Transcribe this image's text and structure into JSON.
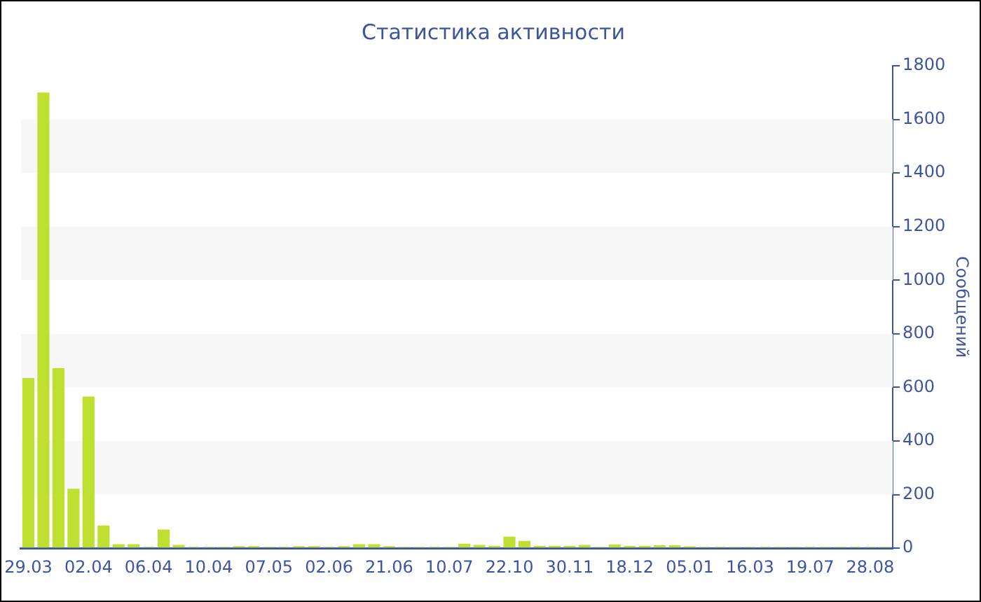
{
  "chart_data": {
    "type": "bar",
    "title": "Статистика активности",
    "ylabel": "Сообщений",
    "categories": [
      "29.03",
      null,
      null,
      null,
      "02.04",
      null,
      null,
      null,
      "06.04",
      null,
      null,
      null,
      "10.04",
      null,
      null,
      null,
      "07.05",
      null,
      null,
      null,
      "02.06",
      null,
      null,
      null,
      "21.06",
      null,
      null,
      null,
      "10.07",
      null,
      null,
      null,
      "22.10",
      null,
      null,
      null,
      "30.11",
      null,
      null,
      null,
      "18.12",
      null,
      null,
      null,
      "05.01",
      null,
      null,
      null,
      "16.03",
      null,
      null,
      null,
      "19.07",
      null,
      null,
      null,
      "28.08",
      null
    ],
    "values": [
      635,
      1700,
      672,
      222,
      566,
      85,
      15,
      15,
      5,
      70,
      12,
      5,
      5,
      5,
      8,
      8,
      5,
      5,
      8,
      8,
      5,
      8,
      15,
      15,
      8,
      5,
      5,
      5,
      5,
      17,
      12,
      9,
      43,
      27,
      9,
      9,
      9,
      12,
      5,
      14,
      9,
      9,
      11,
      11,
      7,
      5,
      5,
      5,
      5,
      5,
      5,
      5,
      5,
      5,
      5,
      5,
      5,
      5
    ],
    "color": "#bfe030",
    "ylim": [
      0,
      1800
    ],
    "yticks": [
      0,
      200,
      400,
      600,
      800,
      1000,
      1200,
      1400,
      1600,
      1800
    ],
    "bands": [
      {
        "axis": "y",
        "from": 200,
        "to": 400,
        "color": "#f7f7f7"
      },
      {
        "axis": "y",
        "from": 600,
        "to": 800,
        "color": "#f7f7f7"
      },
      {
        "axis": "y",
        "from": 1000,
        "to": 1200,
        "color": "#f7f7f7"
      },
      {
        "axis": "y",
        "from": 1400,
        "to": 1600,
        "color": "#f7f7f7"
      }
    ]
  }
}
